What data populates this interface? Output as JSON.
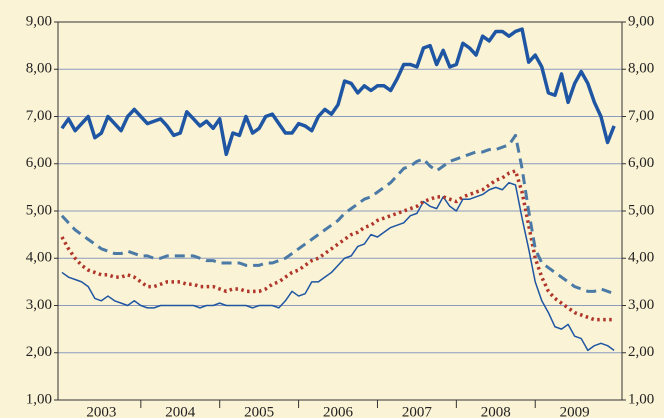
{
  "chart_data": {
    "type": "line",
    "x": [
      2003,
      2003.083,
      2003.167,
      2003.25,
      2003.333,
      2003.417,
      2003.5,
      2003.583,
      2003.667,
      2003.75,
      2003.833,
      2003.917,
      2004,
      2004.083,
      2004.167,
      2004.25,
      2004.333,
      2004.417,
      2004.5,
      2004.583,
      2004.667,
      2004.75,
      2004.833,
      2004.917,
      2005,
      2005.083,
      2005.167,
      2005.25,
      2005.333,
      2005.417,
      2005.5,
      2005.583,
      2005.667,
      2005.75,
      2005.833,
      2005.917,
      2006,
      2006.083,
      2006.167,
      2006.25,
      2006.333,
      2006.417,
      2006.5,
      2006.583,
      2006.667,
      2006.75,
      2006.833,
      2006.917,
      2007,
      2007.083,
      2007.167,
      2007.25,
      2007.333,
      2007.417,
      2007.5,
      2007.583,
      2007.667,
      2007.75,
      2007.833,
      2007.917,
      2008,
      2008.083,
      2008.167,
      2008.25,
      2008.333,
      2008.417,
      2008.5,
      2008.583,
      2008.667,
      2008.75,
      2008.833,
      2008.917,
      2009,
      2009.083,
      2009.167,
      2009.25,
      2009.333,
      2009.417,
      2009.5,
      2009.583,
      2009.667,
      2009.75,
      2009.833,
      2009.917,
      2010
    ],
    "series": [
      {
        "color": "#1f56a3",
        "style": "thick",
        "values": [
          6.75,
          6.95,
          6.7,
          6.85,
          7.0,
          6.55,
          6.65,
          7.0,
          6.85,
          6.7,
          7.0,
          7.15,
          7.0,
          6.85,
          6.9,
          6.95,
          6.8,
          6.6,
          6.65,
          7.1,
          6.95,
          6.8,
          6.9,
          6.75,
          6.95,
          6.2,
          6.65,
          6.6,
          7.0,
          6.65,
          6.75,
          7.0,
          7.05,
          6.85,
          6.65,
          6.65,
          6.85,
          6.8,
          6.7,
          7.0,
          7.15,
          7.05,
          7.25,
          7.75,
          7.7,
          7.5,
          7.65,
          7.55,
          7.65,
          7.65,
          7.55,
          7.8,
          8.1,
          8.1,
          8.05,
          8.45,
          8.5,
          8.1,
          8.4,
          8.05,
          8.1,
          8.55,
          8.45,
          8.3,
          8.7,
          8.6,
          8.8,
          8.8,
          8.7,
          8.8,
          8.85,
          8.15,
          8.3,
          8.05,
          7.5,
          7.45,
          7.9,
          7.3,
          7.7,
          7.95,
          7.7,
          7.3,
          7.0,
          6.45,
          6.8
        ]
      },
      {
        "color": "#1f56a3",
        "style": "thin",
        "values": [
          3.7,
          3.6,
          3.55,
          3.5,
          3.4,
          3.15,
          3.1,
          3.2,
          3.1,
          3.05,
          3.0,
          3.1,
          3.0,
          2.95,
          2.95,
          3.0,
          3.0,
          3.0,
          3.0,
          3.0,
          3.0,
          2.95,
          3.0,
          3.0,
          3.05,
          3.0,
          3.0,
          3.0,
          3.0,
          2.95,
          3.0,
          3.0,
          3.0,
          2.95,
          3.1,
          3.3,
          3.2,
          3.25,
          3.5,
          3.5,
          3.6,
          3.7,
          3.85,
          4.0,
          4.05,
          4.25,
          4.3,
          4.5,
          4.45,
          4.55,
          4.65,
          4.7,
          4.75,
          4.9,
          4.95,
          5.2,
          5.1,
          5.05,
          5.3,
          5.1,
          5.0,
          5.25,
          5.25,
          5.3,
          5.35,
          5.45,
          5.5,
          5.45,
          5.6,
          5.55,
          4.85,
          4.2,
          3.5,
          3.1,
          2.85,
          2.55,
          2.5,
          2.6,
          2.35,
          2.3,
          2.05,
          2.15,
          2.2,
          2.15,
          2.05
        ]
      },
      {
        "color": "#b0352a",
        "style": "dotted",
        "values": [
          4.45,
          4.2,
          4.0,
          3.85,
          3.75,
          3.7,
          3.65,
          3.65,
          3.6,
          3.6,
          3.65,
          3.6,
          3.5,
          3.4,
          3.4,
          3.45,
          3.5,
          3.5,
          3.5,
          3.45,
          3.45,
          3.4,
          3.4,
          3.4,
          3.35,
          3.3,
          3.35,
          3.35,
          3.3,
          3.3,
          3.3,
          3.35,
          3.45,
          3.5,
          3.6,
          3.7,
          3.75,
          3.85,
          3.95,
          4.0,
          4.1,
          4.2,
          4.3,
          4.4,
          4.5,
          4.55,
          4.65,
          4.7,
          4.8,
          4.85,
          4.9,
          4.95,
          5.0,
          5.05,
          5.1,
          5.2,
          5.25,
          5.3,
          5.3,
          5.25,
          5.2,
          5.3,
          5.35,
          5.4,
          5.45,
          5.55,
          5.65,
          5.7,
          5.8,
          5.85,
          5.4,
          4.7,
          4.0,
          3.6,
          3.3,
          3.15,
          3.05,
          2.95,
          2.85,
          2.8,
          2.75,
          2.7,
          2.7,
          2.7,
          2.7
        ]
      },
      {
        "color": "#4b7aa6",
        "style": "dashed",
        "values": [
          4.9,
          4.75,
          4.6,
          4.5,
          4.4,
          4.3,
          4.2,
          4.15,
          4.1,
          4.1,
          4.15,
          4.1,
          4.05,
          4.05,
          4.0,
          4.0,
          4.05,
          4.05,
          4.05,
          4.05,
          4.05,
          4.0,
          3.95,
          3.95,
          3.9,
          3.9,
          3.9,
          3.9,
          3.85,
          3.85,
          3.85,
          3.9,
          3.9,
          3.95,
          4.0,
          4.1,
          4.2,
          4.3,
          4.4,
          4.5,
          4.6,
          4.7,
          4.8,
          4.95,
          5.05,
          5.15,
          5.25,
          5.3,
          5.4,
          5.5,
          5.6,
          5.75,
          5.9,
          5.95,
          6.05,
          6.1,
          5.95,
          5.85,
          5.95,
          6.05,
          6.1,
          6.15,
          6.2,
          6.25,
          6.25,
          6.3,
          6.3,
          6.35,
          6.4,
          6.6,
          5.9,
          5.0,
          4.2,
          3.9,
          3.8,
          3.7,
          3.6,
          3.5,
          3.4,
          3.35,
          3.3,
          3.3,
          3.35,
          3.3,
          3.25
        ]
      }
    ],
    "xlim": [
      2002.95,
      2010.1
    ],
    "xticks": [
      {
        "value": 2003.5,
        "label": "2003"
      },
      {
        "value": 2004.5,
        "label": "2004"
      },
      {
        "value": 2005.5,
        "label": "2005"
      },
      {
        "value": 2006.5,
        "label": "2006"
      },
      {
        "value": 2007.5,
        "label": "2007"
      },
      {
        "value": 2008.5,
        "label": "2008"
      },
      {
        "value": 2009.5,
        "label": "2009"
      }
    ],
    "ylim": [
      1,
      9
    ],
    "yticks": [
      {
        "value": 1,
        "label": "1,00"
      },
      {
        "value": 2,
        "label": "2,00"
      },
      {
        "value": 3,
        "label": "3,00"
      },
      {
        "value": 4,
        "label": "4,00"
      },
      {
        "value": 5,
        "label": "5,00"
      },
      {
        "value": 6,
        "label": "6,00"
      },
      {
        "value": 7,
        "label": "7,00"
      },
      {
        "value": 8,
        "label": "8,00"
      },
      {
        "value": 9,
        "label": "9,00"
      }
    ],
    "y2lim": [
      1,
      9
    ],
    "y2ticks": [
      {
        "value": 1,
        "label": "1,00"
      },
      {
        "value": 2,
        "label": "2,00"
      },
      {
        "value": 3,
        "label": "3,00"
      },
      {
        "value": 4,
        "label": "4,00"
      },
      {
        "value": 5,
        "label": "5,00"
      },
      {
        "value": 6,
        "label": "6,00"
      },
      {
        "value": 7,
        "label": "7,00"
      },
      {
        "value": 8,
        "label": "8,00"
      },
      {
        "value": 9,
        "label": "9,00"
      }
    ],
    "grid": true
  }
}
